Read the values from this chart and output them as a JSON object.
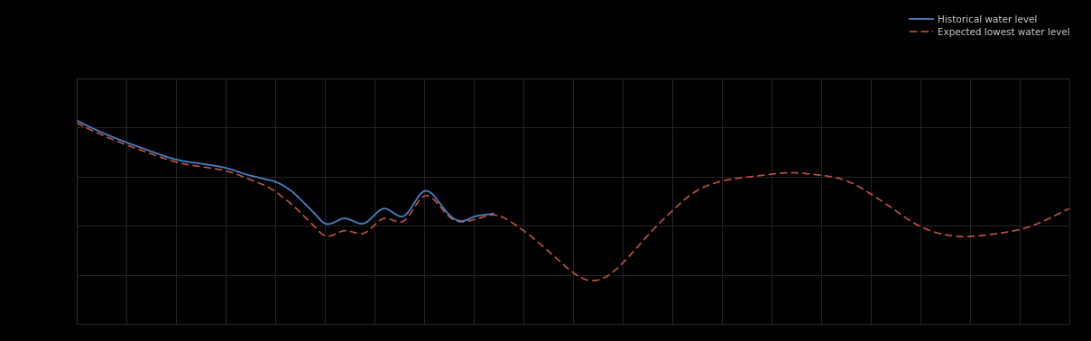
{
  "background_color": "#000000",
  "grid_color": "#2a2a2a",
  "line1_color": "#4a7fc1",
  "line2_color": "#c05040",
  "line1_label": "Historical water level",
  "line2_label": "Expected lowest water level",
  "figsize": [
    12.09,
    3.78
  ],
  "dpi": 100,
  "xlim": [
    0,
    100
  ],
  "ylim": [
    0,
    5
  ],
  "n_x_grid": 20,
  "n_y_grid": 5,
  "blue_x": [
    0,
    2,
    5,
    8,
    10,
    12,
    14,
    15,
    16,
    17,
    18,
    19,
    20,
    21,
    22,
    23,
    24,
    25,
    27,
    29,
    31,
    33,
    35,
    37,
    38,
    39,
    40,
    41,
    42
  ],
  "blue_y": [
    4.15,
    3.95,
    3.7,
    3.48,
    3.35,
    3.28,
    3.22,
    3.18,
    3.12,
    3.05,
    3.0,
    2.95,
    2.9,
    2.8,
    2.65,
    2.45,
    2.25,
    2.05,
    2.15,
    2.05,
    2.35,
    2.2,
    2.7,
    2.35,
    2.15,
    2.1,
    2.18,
    2.22,
    2.25
  ],
  "red_x": [
    0,
    2,
    5,
    8,
    10,
    12,
    14,
    15,
    16,
    17,
    18,
    19,
    20,
    21,
    22,
    23,
    24,
    25,
    27,
    29,
    31,
    33,
    35,
    37,
    38,
    39,
    40,
    41,
    42,
    44,
    46,
    48,
    50,
    52,
    54,
    56,
    58,
    60,
    62,
    64,
    66,
    68,
    70,
    72,
    74,
    76,
    78,
    80,
    82,
    84,
    86,
    88,
    90,
    92,
    94,
    96,
    98,
    100
  ],
  "red_y": [
    4.1,
    3.9,
    3.65,
    3.43,
    3.3,
    3.22,
    3.16,
    3.12,
    3.06,
    2.98,
    2.9,
    2.82,
    2.7,
    2.55,
    2.38,
    2.18,
    1.98,
    1.8,
    1.9,
    1.85,
    2.15,
    2.1,
    2.6,
    2.3,
    2.12,
    2.08,
    2.12,
    2.18,
    2.22,
    2.05,
    1.75,
    1.4,
    1.05,
    0.88,
    1.05,
    1.45,
    1.9,
    2.3,
    2.65,
    2.85,
    2.95,
    3.0,
    3.05,
    3.08,
    3.05,
    3.0,
    2.88,
    2.65,
    2.38,
    2.1,
    1.9,
    1.8,
    1.78,
    1.82,
    1.88,
    1.98,
    2.15,
    2.35
  ]
}
